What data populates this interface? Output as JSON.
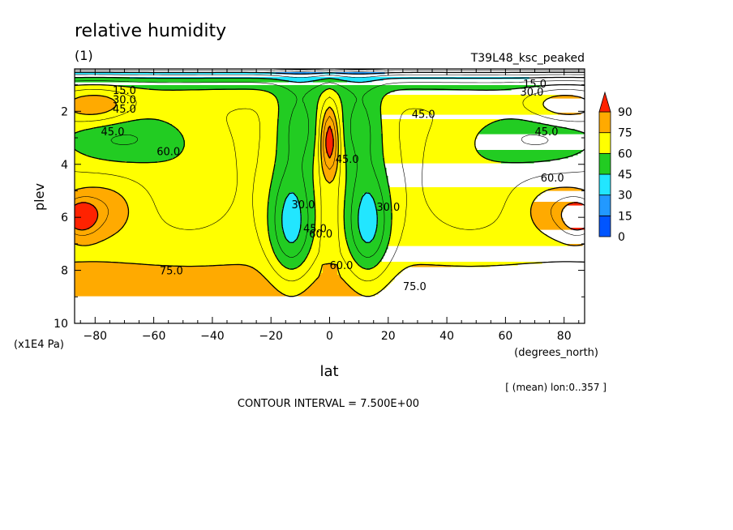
{
  "chart_data": {
    "type": "contour",
    "title": "relative humidity",
    "subtitle": "(1)",
    "run_label": "T39L48_ksc_peaked",
    "xlabel": "lat",
    "xunits": "(degrees_north)",
    "ylabel": "plev",
    "yunits": "(x1E4 Pa)",
    "xlim": [
      -87,
      87
    ],
    "ylim": [
      10,
      0.4
    ],
    "xticks": [
      -80,
      -60,
      -40,
      -20,
      0,
      20,
      40,
      60,
      80
    ],
    "xtick_labels": [
      "−80",
      "−60",
      "−40",
      "−20",
      "0",
      "20",
      "40",
      "60",
      "80"
    ],
    "yticks": [
      2,
      4,
      6,
      8,
      10
    ],
    "ytick_labels": [
      "2",
      "4",
      "6",
      "8",
      "10"
    ],
    "mean_note": "[ (mean) lon:0..357 ]",
    "contour_interval_text": "CONTOUR INTERVAL = 7.500E+00",
    "contour_interval": 7.5,
    "contour_labels": [
      {
        "text": "15.0",
        "lat": -70,
        "plev": 1.2
      },
      {
        "text": "30.0",
        "lat": -70,
        "plev": 1.55
      },
      {
        "text": "45.0",
        "lat": -70,
        "plev": 1.9
      },
      {
        "text": "45.0",
        "lat": -74,
        "plev": 2.75
      },
      {
        "text": "60.0",
        "lat": -55,
        "plev": 3.5
      },
      {
        "text": "75.0",
        "lat": -54,
        "plev": 8.0
      },
      {
        "text": "30.0",
        "lat": -9,
        "plev": 5.5
      },
      {
        "text": "45.0",
        "lat": 6,
        "plev": 3.8
      },
      {
        "text": "45.0",
        "lat": -5,
        "plev": 6.4
      },
      {
        "text": "60.0",
        "lat": -3,
        "plev": 6.6
      },
      {
        "text": "60.0",
        "lat": 4,
        "plev": 7.8
      },
      {
        "text": "30.0",
        "lat": 20,
        "plev": 5.6
      },
      {
        "text": "45.0",
        "lat": 32,
        "plev": 2.1
      },
      {
        "text": "75.0",
        "lat": 29,
        "plev": 8.6
      },
      {
        "text": "15.0",
        "lat": 70,
        "plev": 0.95
      },
      {
        "text": "30.0",
        "lat": 69,
        "plev": 1.25
      },
      {
        "text": "45.0",
        "lat": 74,
        "plev": 2.75
      },
      {
        "text": "60.0",
        "lat": 76,
        "plev": 4.5
      }
    ],
    "colorbar": {
      "levels": [
        0,
        15,
        30,
        45,
        60,
        75,
        90
      ],
      "labels": [
        "0",
        "15",
        "30",
        "45",
        "60",
        "75",
        "90"
      ],
      "colors": [
        "#0055ff",
        "#2299ff",
        "#22e6ff",
        "#22cc22",
        "#ffff00",
        "#ffaa00",
        "#ff2200"
      ],
      "extend": "max"
    }
  }
}
